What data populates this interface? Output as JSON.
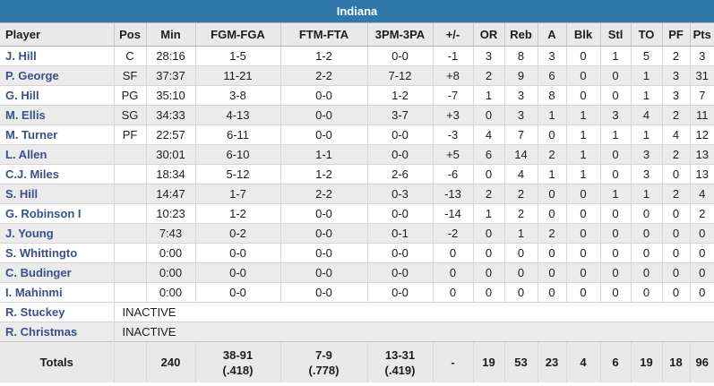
{
  "header": {
    "title": "Indiana"
  },
  "colors": {
    "title_bg": "#2e78ac",
    "title_text": "#ffffff",
    "player_link": "#3c4e8e",
    "row_stripe": "#ebebeb",
    "header_row_bg": "#e9e9e9",
    "border": "#d4d4d4"
  },
  "table": {
    "columns": [
      "Player",
      "Pos",
      "Min",
      "FGM-FGA",
      "FTM-FTA",
      "3PM-3PA",
      "+/-",
      "OR",
      "Reb",
      "A",
      "Blk",
      "Stl",
      "TO",
      "PF",
      "Pts"
    ],
    "rows": [
      {
        "player": "J. Hill",
        "pos": "C",
        "min": "28:16",
        "fgm_fga": "1-5",
        "ftm_fta": "1-2",
        "tpm_tpa": "0-0",
        "plus_minus": "-1",
        "or": "3",
        "reb": "8",
        "a": "3",
        "blk": "0",
        "stl": "1",
        "to": "5",
        "pf": "2",
        "pts": "3"
      },
      {
        "player": "P. George",
        "pos": "SF",
        "min": "37:37",
        "fgm_fga": "11-21",
        "ftm_fta": "2-2",
        "tpm_tpa": "7-12",
        "plus_minus": "+8",
        "or": "2",
        "reb": "9",
        "a": "6",
        "blk": "0",
        "stl": "0",
        "to": "1",
        "pf": "3",
        "pts": "31"
      },
      {
        "player": "G. Hill",
        "pos": "PG",
        "min": "35:10",
        "fgm_fga": "3-8",
        "ftm_fta": "0-0",
        "tpm_tpa": "1-2",
        "plus_minus": "-7",
        "or": "1",
        "reb": "3",
        "a": "8",
        "blk": "0",
        "stl": "0",
        "to": "1",
        "pf": "3",
        "pts": "7"
      },
      {
        "player": "M. Ellis",
        "pos": "SG",
        "min": "34:33",
        "fgm_fga": "4-13",
        "ftm_fta": "0-0",
        "tpm_tpa": "3-7",
        "plus_minus": "+3",
        "or": "0",
        "reb": "3",
        "a": "1",
        "blk": "1",
        "stl": "3",
        "to": "4",
        "pf": "2",
        "pts": "11"
      },
      {
        "player": "M. Turner",
        "pos": "PF",
        "min": "22:57",
        "fgm_fga": "6-11",
        "ftm_fta": "0-0",
        "tpm_tpa": "0-0",
        "plus_minus": "-3",
        "or": "4",
        "reb": "7",
        "a": "0",
        "blk": "1",
        "stl": "1",
        "to": "1",
        "pf": "4",
        "pts": "12"
      },
      {
        "player": "L. Allen",
        "pos": "",
        "min": "30:01",
        "fgm_fga": "6-10",
        "ftm_fta": "1-1",
        "tpm_tpa": "0-0",
        "plus_minus": "+5",
        "or": "6",
        "reb": "14",
        "a": "2",
        "blk": "1",
        "stl": "0",
        "to": "3",
        "pf": "2",
        "pts": "13"
      },
      {
        "player": "C.J. Miles",
        "pos": "",
        "min": "18:34",
        "fgm_fga": "5-12",
        "ftm_fta": "1-2",
        "tpm_tpa": "2-6",
        "plus_minus": "-6",
        "or": "0",
        "reb": "4",
        "a": "1",
        "blk": "1",
        "stl": "0",
        "to": "3",
        "pf": "0",
        "pts": "13"
      },
      {
        "player": "S. Hill",
        "pos": "",
        "min": "14:47",
        "fgm_fga": "1-7",
        "ftm_fta": "2-2",
        "tpm_tpa": "0-3",
        "plus_minus": "-13",
        "or": "2",
        "reb": "2",
        "a": "0",
        "blk": "0",
        "stl": "1",
        "to": "1",
        "pf": "2",
        "pts": "4"
      },
      {
        "player": "G. Robinson I",
        "pos": "",
        "min": "10:23",
        "fgm_fga": "1-2",
        "ftm_fta": "0-0",
        "tpm_tpa": "0-0",
        "plus_minus": "-14",
        "or": "1",
        "reb": "2",
        "a": "0",
        "blk": "0",
        "stl": "0",
        "to": "0",
        "pf": "0",
        "pts": "2"
      },
      {
        "player": "J. Young",
        "pos": "",
        "min": "7:43",
        "fgm_fga": "0-2",
        "ftm_fta": "0-0",
        "tpm_tpa": "0-1",
        "plus_minus": "-2",
        "or": "0",
        "reb": "1",
        "a": "2",
        "blk": "0",
        "stl": "0",
        "to": "0",
        "pf": "0",
        "pts": "0"
      },
      {
        "player": "S. Whittingto",
        "pos": "",
        "min": "0:00",
        "fgm_fga": "0-0",
        "ftm_fta": "0-0",
        "tpm_tpa": "0-0",
        "plus_minus": "0",
        "or": "0",
        "reb": "0",
        "a": "0",
        "blk": "0",
        "stl": "0",
        "to": "0",
        "pf": "0",
        "pts": "0"
      },
      {
        "player": "C. Budinger",
        "pos": "",
        "min": "0:00",
        "fgm_fga": "0-0",
        "ftm_fta": "0-0",
        "tpm_tpa": "0-0",
        "plus_minus": "0",
        "or": "0",
        "reb": "0",
        "a": "0",
        "blk": "0",
        "stl": "0",
        "to": "0",
        "pf": "0",
        "pts": "0"
      },
      {
        "player": "I. Mahinmi",
        "pos": "",
        "min": "0:00",
        "fgm_fga": "0-0",
        "ftm_fta": "0-0",
        "tpm_tpa": "0-0",
        "plus_minus": "0",
        "or": "0",
        "reb": "0",
        "a": "0",
        "blk": "0",
        "stl": "0",
        "to": "0",
        "pf": "0",
        "pts": "0"
      },
      {
        "player": "R. Stuckey",
        "status": "INACTIVE"
      },
      {
        "player": "R. Christmas",
        "status": "INACTIVE"
      }
    ],
    "totals": {
      "label": "Totals",
      "pos": "",
      "min": "240",
      "fgm_fga": "38-91",
      "fgm_pct": "(.418)",
      "ftm_fta": "7-9",
      "ftm_pct": "(.778)",
      "tpm_tpa": "13-31",
      "tpm_pct": "(.419)",
      "plus_minus": "-",
      "or": "19",
      "reb": "53",
      "a": "23",
      "blk": "4",
      "stl": "6",
      "to": "19",
      "pf": "18",
      "pts": "96"
    }
  }
}
